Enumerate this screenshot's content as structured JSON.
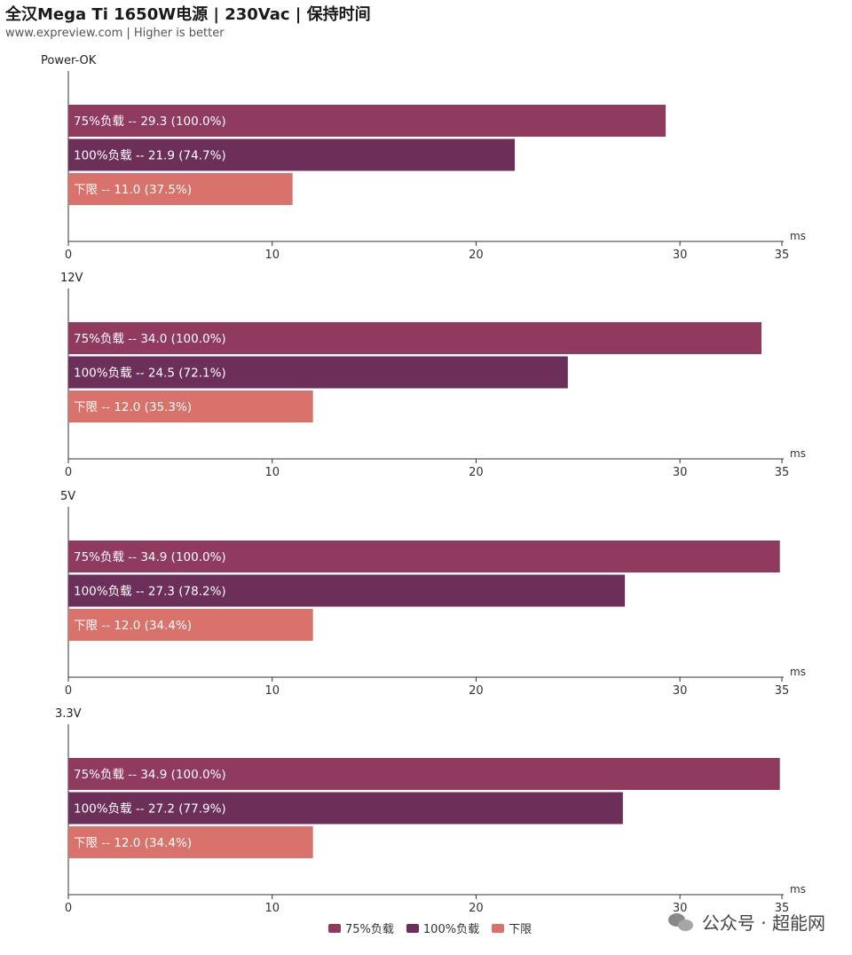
{
  "header": {
    "title": "全汉Mega Ti 1650W电源 | 230Vac | 保持时间",
    "subtitle": "www.expreview.com | Higher is better"
  },
  "colors": {
    "series_75": "#8f3a5e",
    "series_100": "#6b2f5a",
    "series_limit": "#d9726a",
    "axis": "#333333"
  },
  "watermark": {
    "text": "公众号 · 超能网",
    "icon": "wechat-icon"
  },
  "chart_data": [
    {
      "type": "bar",
      "orientation": "horizontal",
      "panel_label": "Power-OK",
      "unit_label": "ms",
      "xlim": [
        0,
        35
      ],
      "xticks": [
        0,
        10,
        20,
        30,
        35
      ],
      "bars": [
        {
          "series": "75%负载",
          "value": 29.3,
          "label": "75%负载  --  29.3  (100.0%)"
        },
        {
          "series": "100%负载",
          "value": 21.9,
          "label": "100%负载  --  21.9  (74.7%)"
        },
        {
          "series": "下限",
          "value": 11.0,
          "label": "下限  --  11.0 (37.5%)"
        }
      ]
    },
    {
      "type": "bar",
      "orientation": "horizontal",
      "panel_label": "12V",
      "unit_label": "ms",
      "xlim": [
        0,
        35
      ],
      "xticks": [
        0,
        10,
        20,
        30,
        35
      ],
      "bars": [
        {
          "series": "75%负载",
          "value": 34.0,
          "label": "75%负载  --  34.0  (100.0%)"
        },
        {
          "series": "100%负载",
          "value": 24.5,
          "label": "100%负载  --  24.5  (72.1%)"
        },
        {
          "series": "下限",
          "value": 12.0,
          "label": "下限  --  12.0 (35.3%)"
        }
      ]
    },
    {
      "type": "bar",
      "orientation": "horizontal",
      "panel_label": "5V",
      "unit_label": "ms",
      "xlim": [
        0,
        35
      ],
      "xticks": [
        0,
        10,
        20,
        30,
        35
      ],
      "bars": [
        {
          "series": "75%负载",
          "value": 34.9,
          "label": "75%负载  --  34.9  (100.0%)"
        },
        {
          "series": "100%负载",
          "value": 27.3,
          "label": "100%负载  --  27.3  (78.2%)"
        },
        {
          "series": "下限",
          "value": 12.0,
          "label": "下限  --  12.0 (34.4%)"
        }
      ]
    },
    {
      "type": "bar",
      "orientation": "horizontal",
      "panel_label": "3.3V",
      "unit_label": "ms",
      "xlim": [
        0,
        35
      ],
      "xticks": [
        0,
        10,
        20,
        30,
        35
      ],
      "bars": [
        {
          "series": "75%负载",
          "value": 34.9,
          "label": "75%负载  --  34.9  (100.0%)"
        },
        {
          "series": "100%负载",
          "value": 27.2,
          "label": "100%负载  --  27.2  (77.9%)"
        },
        {
          "series": "下限",
          "value": 12.0,
          "label": "下限  --  12.0 (34.4%)"
        }
      ]
    }
  ],
  "legend": {
    "position": "bottom-center",
    "items": [
      {
        "name": "75%负载",
        "color": "#8f3a5e"
      },
      {
        "name": "100%负载",
        "color": "#6b2f5a"
      },
      {
        "name": "下限",
        "color": "#d9726a"
      }
    ]
  }
}
